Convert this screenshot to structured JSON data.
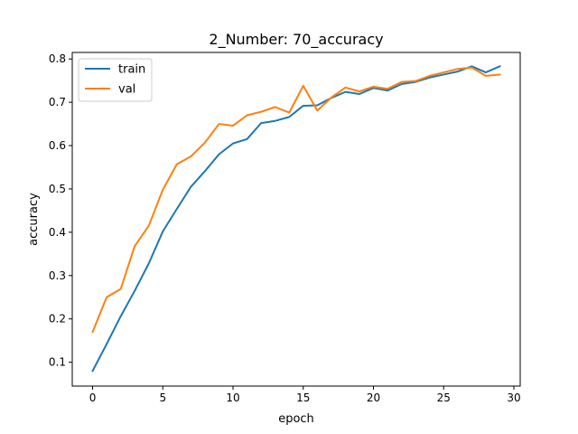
{
  "chart_data": {
    "type": "line",
    "title": "2_Number: 70_accuracy",
    "xlabel": "epoch",
    "ylabel": "accuracy",
    "xlim": [
      -1.45,
      30.45
    ],
    "ylim": [
      0.045,
      0.815
    ],
    "xticks": [
      0,
      5,
      10,
      15,
      20,
      25,
      30
    ],
    "yticks": [
      0.1,
      0.2,
      0.3,
      0.4,
      0.5,
      0.6,
      0.7,
      0.8
    ],
    "tick_labels_x": [
      "0",
      "5",
      "10",
      "15",
      "20",
      "25",
      "30"
    ],
    "tick_labels_y": [
      "0.1",
      "0.2",
      "0.3",
      "0.4",
      "0.5",
      "0.6",
      "0.7",
      "0.8"
    ],
    "grid": false,
    "legend_position": "top-left",
    "x": [
      0,
      1,
      2,
      3,
      4,
      5,
      6,
      7,
      8,
      9,
      10,
      11,
      12,
      13,
      14,
      15,
      16,
      17,
      18,
      19,
      20,
      21,
      22,
      23,
      24,
      25,
      26,
      27,
      28,
      29
    ],
    "series": [
      {
        "name": "train",
        "color": "#1f77b4",
        "values": [
          0.08,
          0.142,
          0.206,
          0.265,
          0.328,
          0.402,
          0.454,
          0.505,
          0.541,
          0.58,
          0.605,
          0.615,
          0.652,
          0.657,
          0.666,
          0.692,
          0.693,
          0.71,
          0.724,
          0.719,
          0.733,
          0.727,
          0.742,
          0.747,
          0.757,
          0.764,
          0.771,
          0.783,
          0.769,
          0.783
        ]
      },
      {
        "name": "val",
        "color": "#ff7f0e",
        "values": [
          0.17,
          0.25,
          0.269,
          0.368,
          0.415,
          0.498,
          0.557,
          0.575,
          0.607,
          0.65,
          0.646,
          0.67,
          0.678,
          0.689,
          0.676,
          0.738,
          0.681,
          0.711,
          0.734,
          0.725,
          0.736,
          0.731,
          0.747,
          0.749,
          0.761,
          0.769,
          0.777,
          0.78,
          0.761,
          0.764
        ]
      }
    ]
  }
}
